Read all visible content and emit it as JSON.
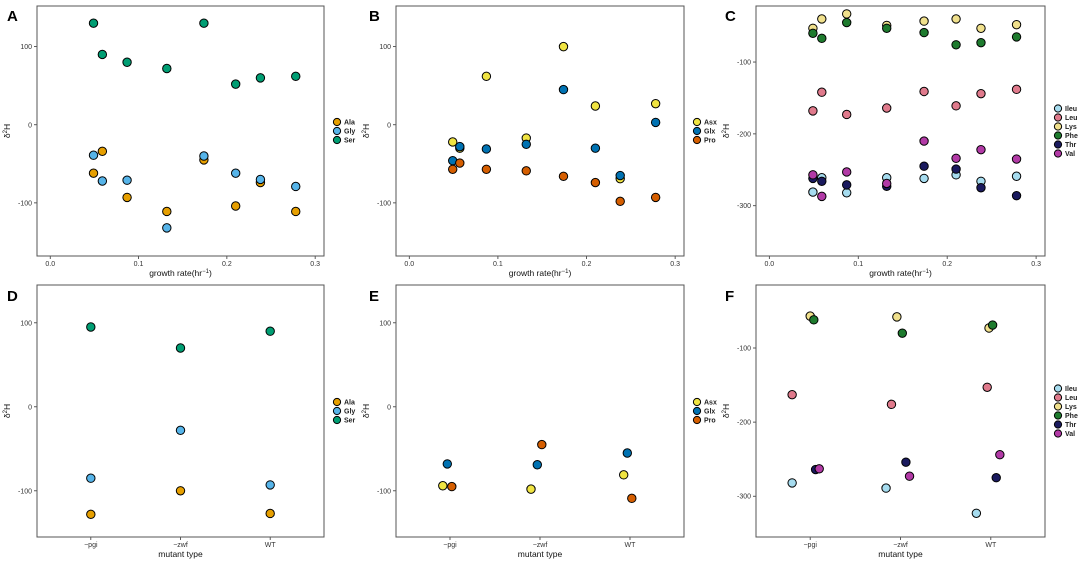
{
  "colors": {
    "Ala": "#E69F00",
    "Gly": "#56B4E9",
    "Ser": "#009E73",
    "Asx": "#F0E442",
    "Glx": "#0072B2",
    "Pro": "#D55E00",
    "Ileu": "#A6DCEF",
    "Leu": "#E07A8C",
    "Lys": "#F0E08C",
    "Phe": "#1E7B2E",
    "Thr": "#1A1A5E",
    "Val": "#B23AA6"
  },
  "chart_data": [
    {
      "panel": "A",
      "type": "scatter",
      "xlabel": "growth rate(hr",
      "xlabel_sup": "−1",
      "xlabel_close": ")",
      "ylabel": "δ",
      "ylabel_sup": "2",
      "ylabel_sub": "H",
      "xlim": [
        -0.015,
        0.31
      ],
      "ylim": [
        -168,
        152
      ],
      "xticks": [
        "0.0",
        "0.1",
        "0.2",
        "0.3"
      ],
      "xtick_values": [
        0,
        0.1,
        0.2,
        0.3
      ],
      "yticks": [
        "-100",
        "0",
        "100"
      ],
      "ytick_values": [
        -100,
        0,
        100
      ],
      "legend": [
        "Ala",
        "Gly",
        "Ser"
      ],
      "series": [
        {
          "name": "Ala",
          "points": [
            [
              0.049,
              -62
            ],
            [
              0.059,
              -34
            ],
            [
              0.087,
              -93
            ],
            [
              0.132,
              -111
            ],
            [
              0.174,
              -45
            ],
            [
              0.21,
              -104
            ],
            [
              0.238,
              -74
            ],
            [
              0.278,
              -111
            ]
          ]
        },
        {
          "name": "Gly",
          "points": [
            [
              0.049,
              -39
            ],
            [
              0.059,
              -72
            ],
            [
              0.087,
              -71
            ],
            [
              0.132,
              -132
            ],
            [
              0.174,
              -40
            ],
            [
              0.21,
              -62
            ],
            [
              0.238,
              -70
            ],
            [
              0.278,
              -79
            ]
          ]
        },
        {
          "name": "Ser",
          "points": [
            [
              0.049,
              130
            ],
            [
              0.059,
              90
            ],
            [
              0.087,
              80
            ],
            [
              0.132,
              72
            ],
            [
              0.174,
              130
            ],
            [
              0.21,
              52
            ],
            [
              0.238,
              60
            ],
            [
              0.278,
              62
            ]
          ]
        }
      ]
    },
    {
      "panel": "B",
      "type": "scatter",
      "xlabel": "growth rate(hr",
      "xlabel_sup": "−1",
      "xlabel_close": ")",
      "ylabel": "δ",
      "ylabel_sup": "2",
      "ylabel_sub": "H",
      "xlim": [
        -0.015,
        0.31
      ],
      "ylim": [
        -168,
        152
      ],
      "xticks": [
        "0.0",
        "0.1",
        "0.2",
        "0.3"
      ],
      "xtick_values": [
        0,
        0.1,
        0.2,
        0.3
      ],
      "yticks": [
        "-100",
        "0",
        "100"
      ],
      "ytick_values": [
        -100,
        0,
        100
      ],
      "legend": [
        "Asx",
        "Glx",
        "Pro"
      ],
      "series": [
        {
          "name": "Asx",
          "points": [
            [
              0.049,
              -22
            ],
            [
              0.057,
              -30
            ],
            [
              0.087,
              62
            ],
            [
              0.132,
              -17
            ],
            [
              0.174,
              100
            ],
            [
              0.21,
              24
            ],
            [
              0.238,
              -69
            ],
            [
              0.278,
              27
            ]
          ]
        },
        {
          "name": "Glx",
          "points": [
            [
              0.049,
              -46
            ],
            [
              0.057,
              -28
            ],
            [
              0.087,
              -31
            ],
            [
              0.132,
              -25
            ],
            [
              0.174,
              45
            ],
            [
              0.21,
              -30
            ],
            [
              0.238,
              -65
            ],
            [
              0.278,
              3
            ]
          ]
        },
        {
          "name": "Pro",
          "points": [
            [
              0.049,
              -57
            ],
            [
              0.057,
              -49
            ],
            [
              0.087,
              -57
            ],
            [
              0.132,
              -59
            ],
            [
              0.174,
              -66
            ],
            [
              0.21,
              -74
            ],
            [
              0.238,
              -98
            ],
            [
              0.278,
              -93
            ]
          ]
        }
      ]
    },
    {
      "panel": "C",
      "type": "scatter",
      "xlabel": "growth rate(hr",
      "xlabel_sup": "−1",
      "xlabel_close": ")",
      "ylabel": "δ",
      "ylabel_sup": "2",
      "ylabel_sub": "H",
      "xlim": [
        -0.015,
        0.31
      ],
      "ylim": [
        -370,
        -22
      ],
      "xticks": [
        "0.0",
        "0.1",
        "0.2",
        "0.3"
      ],
      "xtick_values": [
        0,
        0.1,
        0.2,
        0.3
      ],
      "yticks": [
        "-300",
        "-200",
        "-100"
      ],
      "ytick_values": [
        -300,
        -200,
        -100
      ],
      "legend": [
        "Ileu",
        "Leu",
        "Lys",
        "Phe",
        "Thr",
        "Val"
      ],
      "series": [
        {
          "name": "Ileu",
          "points": [
            [
              0.049,
              -281
            ],
            [
              0.059,
              -261
            ],
            [
              0.087,
              -282
            ],
            [
              0.132,
              -261
            ],
            [
              0.174,
              -262
            ],
            [
              0.21,
              -257
            ],
            [
              0.238,
              -266
            ],
            [
              0.278,
              -259
            ]
          ]
        },
        {
          "name": "Leu",
          "points": [
            [
              0.049,
              -168
            ],
            [
              0.059,
              -142
            ],
            [
              0.087,
              -173
            ],
            [
              0.132,
              -164
            ],
            [
              0.174,
              -141
            ],
            [
              0.21,
              -161
            ],
            [
              0.238,
              -144
            ],
            [
              0.278,
              -138
            ]
          ]
        },
        {
          "name": "Lys",
          "points": [
            [
              0.049,
              -53
            ],
            [
              0.059,
              -40
            ],
            [
              0.087,
              -33
            ],
            [
              0.132,
              -49
            ],
            [
              0.174,
              -43
            ],
            [
              0.21,
              -40
            ],
            [
              0.238,
              -53
            ],
            [
              0.278,
              -48
            ]
          ]
        },
        {
          "name": "Phe",
          "points": [
            [
              0.049,
              -60
            ],
            [
              0.059,
              -67
            ],
            [
              0.087,
              -45
            ],
            [
              0.132,
              -53
            ],
            [
              0.174,
              -59
            ],
            [
              0.21,
              -76
            ],
            [
              0.238,
              -73
            ],
            [
              0.278,
              -65
            ]
          ]
        },
        {
          "name": "Thr",
          "points": [
            [
              0.049,
              -262
            ],
            [
              0.059,
              -266
            ],
            [
              0.087,
              -271
            ],
            [
              0.132,
              -273
            ],
            [
              0.174,
              -245
            ],
            [
              0.21,
              -249
            ],
            [
              0.238,
              -275
            ],
            [
              0.278,
              -286
            ]
          ]
        },
        {
          "name": "Val",
          "points": [
            [
              0.049,
              -257
            ],
            [
              0.059,
              -287
            ],
            [
              0.087,
              -253
            ],
            [
              0.132,
              -269
            ],
            [
              0.174,
              -210
            ],
            [
              0.21,
              -234
            ],
            [
              0.238,
              -222
            ],
            [
              0.278,
              -235
            ]
          ]
        }
      ]
    },
    {
      "panel": "D",
      "type": "scatter",
      "xlabel": "mutant type",
      "xlabel_sup": "",
      "xlabel_close": "",
      "ylabel": "δ",
      "ylabel_sup": "2",
      "ylabel_sub": "H",
      "xlim": [
        0.4,
        3.6
      ],
      "ylim": [
        -155,
        145
      ],
      "xticks": [
        "−pgi",
        "−zwf",
        "WT"
      ],
      "xtick_values": [
        1,
        2,
        3
      ],
      "yticks": [
        "-100",
        "0",
        "100"
      ],
      "ytick_values": [
        -100,
        0,
        100
      ],
      "legend": [
        "Ala",
        "Gly",
        "Ser"
      ],
      "series": [
        {
          "name": "Ala",
          "points": [
            [
              1,
              -128
            ],
            [
              2,
              -100
            ],
            [
              3,
              -127
            ]
          ]
        },
        {
          "name": "Gly",
          "points": [
            [
              1,
              -85
            ],
            [
              2,
              -28
            ],
            [
              3,
              -93
            ]
          ]
        },
        {
          "name": "Ser",
          "points": [
            [
              1,
              95
            ],
            [
              2,
              70
            ],
            [
              3,
              90
            ]
          ]
        }
      ]
    },
    {
      "panel": "E",
      "type": "scatter",
      "xlabel": "mutant type",
      "xlabel_sup": "",
      "xlabel_close": "",
      "ylabel": "δ",
      "ylabel_sup": "2",
      "ylabel_sub": "H",
      "xlim": [
        0.4,
        3.6
      ],
      "ylim": [
        -155,
        145
      ],
      "xticks": [
        "−pgi",
        "−zwf",
        "WT"
      ],
      "xtick_values": [
        1,
        2,
        3
      ],
      "yticks": [
        "-100",
        "0",
        "100"
      ],
      "ytick_values": [
        -100,
        0,
        100
      ],
      "legend": [
        "Asx",
        "Glx",
        "Pro"
      ],
      "series": [
        {
          "name": "Asx",
          "points": [
            [
              0.92,
              -94
            ],
            [
              1.9,
              -98
            ],
            [
              2.93,
              -81
            ]
          ]
        },
        {
          "name": "Glx",
          "points": [
            [
              0.97,
              -68
            ],
            [
              1.97,
              -69
            ],
            [
              2.97,
              -55
            ]
          ]
        },
        {
          "name": "Pro",
          "points": [
            [
              1.02,
              -95
            ],
            [
              2.02,
              -45
            ],
            [
              3.02,
              -109
            ]
          ]
        }
      ]
    },
    {
      "panel": "F",
      "type": "scatter",
      "xlabel": "mutant type",
      "xlabel_sup": "",
      "xlabel_close": "",
      "ylabel": "δ",
      "ylabel_sup": "2",
      "ylabel_sub": "H",
      "xlim": [
        0.4,
        3.6
      ],
      "ylim": [
        -355,
        -15
      ],
      "xticks": [
        "−pgi",
        "−zwf",
        "WT"
      ],
      "xtick_values": [
        1,
        2,
        3
      ],
      "yticks": [
        "-300",
        "-200",
        "-100"
      ],
      "ytick_values": [
        -300,
        -200,
        -100
      ],
      "legend": [
        "Ileu",
        "Leu",
        "Lys",
        "Phe",
        "Thr",
        "Val"
      ],
      "series": [
        {
          "name": "Ileu",
          "points": [
            [
              0.8,
              -282
            ],
            [
              1.84,
              -289
            ],
            [
              2.84,
              -323
            ]
          ]
        },
        {
          "name": "Leu",
          "points": [
            [
              0.8,
              -163
            ],
            [
              1.9,
              -176
            ],
            [
              2.96,
              -153
            ]
          ]
        },
        {
          "name": "Lys",
          "points": [
            [
              1.0,
              -57
            ],
            [
              1.96,
              -58
            ],
            [
              2.98,
              -73
            ]
          ]
        },
        {
          "name": "Phe",
          "points": [
            [
              1.04,
              -62
            ],
            [
              2.02,
              -80
            ],
            [
              3.02,
              -69
            ]
          ]
        },
        {
          "name": "Thr",
          "points": [
            [
              1.06,
              -264
            ],
            [
              2.06,
              -254
            ],
            [
              3.06,
              -275
            ]
          ]
        },
        {
          "name": "Val",
          "points": [
            [
              1.1,
              -263
            ],
            [
              2.1,
              -273
            ],
            [
              3.1,
              -244
            ]
          ]
        }
      ]
    }
  ]
}
